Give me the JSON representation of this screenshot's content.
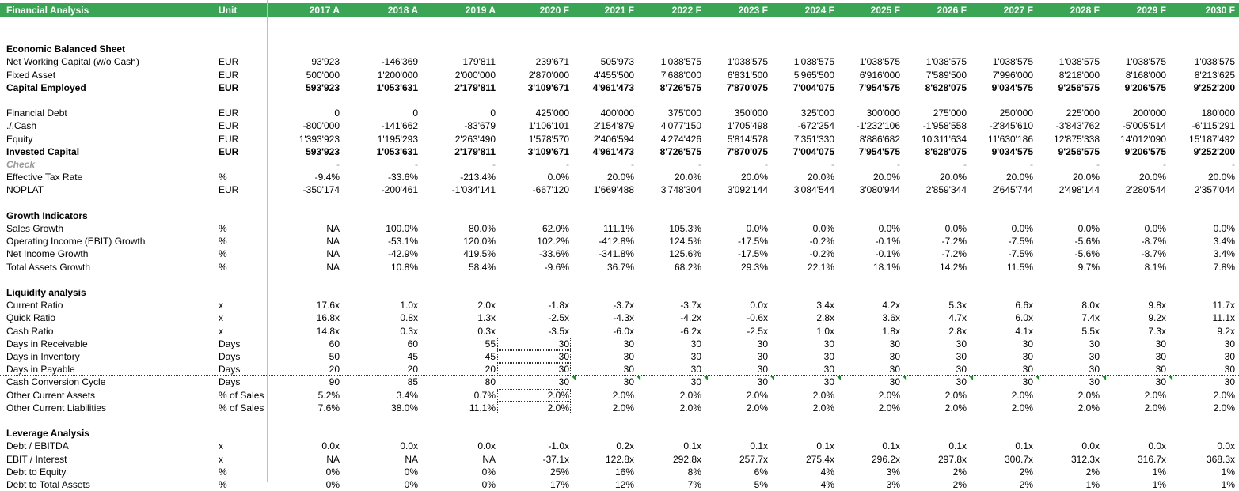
{
  "header": {
    "title": "Financial Analysis",
    "unit_label": "Unit",
    "years": [
      "2017 A",
      "2018 A",
      "2019 A",
      "2020 F",
      "2021 F",
      "2022 F",
      "2023 F",
      "2024 F",
      "2025 F",
      "2026 F",
      "2027 F",
      "2028 F",
      "2029 F",
      "2030 F"
    ]
  },
  "rows": [
    {
      "type": "blank"
    },
    {
      "type": "section",
      "label": "Economic Balanced Sheet"
    },
    {
      "type": "data",
      "label": "Net Working Capital (w/o Cash)",
      "unit": "EUR",
      "values": [
        "93'923",
        "-146'369",
        "179'811",
        "239'671",
        "505'973",
        "1'038'575",
        "1'038'575",
        "1'038'575",
        "1'038'575",
        "1'038'575",
        "1'038'575",
        "1'038'575",
        "1'038'575",
        "1'038'575"
      ]
    },
    {
      "type": "data",
      "label": "Fixed Asset",
      "unit": "EUR",
      "values": [
        "500'000",
        "1'200'000",
        "2'000'000",
        "2'870'000",
        "4'455'500",
        "7'688'000",
        "6'831'500",
        "5'965'500",
        "6'916'000",
        "7'589'500",
        "7'996'000",
        "8'218'000",
        "8'168'000",
        "8'213'625"
      ]
    },
    {
      "type": "bold",
      "label": "Capital Employed",
      "unit": "EUR",
      "values": [
        "593'923",
        "1'053'631",
        "2'179'811",
        "3'109'671",
        "4'961'473",
        "8'726'575",
        "7'870'075",
        "7'004'075",
        "7'954'575",
        "8'628'075",
        "9'034'575",
        "9'256'575",
        "9'206'575",
        "9'252'200"
      ]
    },
    {
      "type": "blank"
    },
    {
      "type": "data",
      "label": "Financial Debt",
      "unit": "EUR",
      "values": [
        "0",
        "0",
        "0",
        "425'000",
        "400'000",
        "375'000",
        "350'000",
        "325'000",
        "300'000",
        "275'000",
        "250'000",
        "225'000",
        "200'000",
        "180'000"
      ]
    },
    {
      "type": "data",
      "label": "./.Cash",
      "unit": "EUR",
      "values": [
        "-800'000",
        "-141'662",
        "-83'679",
        "1'106'101",
        "2'154'879",
        "4'077'150",
        "1'705'498",
        "-672'254",
        "-1'232'106",
        "-1'958'558",
        "-2'845'610",
        "-3'843'762",
        "-5'005'514",
        "-6'115'291"
      ]
    },
    {
      "type": "data",
      "label": "Equity",
      "unit": "EUR",
      "values": [
        "1'393'923",
        "1'195'293",
        "2'263'490",
        "1'578'570",
        "2'406'594",
        "4'274'426",
        "5'814'578",
        "7'351'330",
        "8'886'682",
        "10'311'634",
        "11'630'186",
        "12'875'338",
        "14'012'090",
        "15'187'492"
      ]
    },
    {
      "type": "bold",
      "label": "Invested Capital",
      "unit": "EUR",
      "values": [
        "593'923",
        "1'053'631",
        "2'179'811",
        "3'109'671",
        "4'961'473",
        "8'726'575",
        "7'870'075",
        "7'004'075",
        "7'954'575",
        "8'628'075",
        "9'034'575",
        "9'256'575",
        "9'206'575",
        "9'252'200"
      ]
    },
    {
      "type": "check",
      "label": "Check",
      "unit": "",
      "values": [
        "-",
        "-",
        "-",
        "-",
        "-",
        "-",
        "-",
        "-",
        "-",
        "-",
        "-",
        "-",
        "-",
        "-"
      ]
    },
    {
      "type": "data",
      "label": "Effective Tax Rate",
      "unit": "%",
      "values": [
        "-9.4%",
        "-33.6%",
        "-213.4%",
        "0.0%",
        "20.0%",
        "20.0%",
        "20.0%",
        "20.0%",
        "20.0%",
        "20.0%",
        "20.0%",
        "20.0%",
        "20.0%",
        "20.0%"
      ]
    },
    {
      "type": "data",
      "label": "NOPLAT",
      "unit": "EUR",
      "values": [
        "-350'174",
        "-200'461",
        "-1'034'141",
        "-667'120",
        "1'669'488",
        "3'748'304",
        "3'092'144",
        "3'084'544",
        "3'080'944",
        "2'859'344",
        "2'645'744",
        "2'498'144",
        "2'280'544",
        "2'357'044"
      ]
    },
    {
      "type": "blank"
    },
    {
      "type": "section",
      "label": "Growth Indicators"
    },
    {
      "type": "data",
      "label": "Sales Growth",
      "unit": "%",
      "values": [
        "NA",
        "100.0%",
        "80.0%",
        "62.0%",
        "111.1%",
        "105.3%",
        "0.0%",
        "0.0%",
        "0.0%",
        "0.0%",
        "0.0%",
        "0.0%",
        "0.0%",
        "0.0%"
      ]
    },
    {
      "type": "data",
      "label": "Operating Income (EBIT) Growth",
      "unit": "%",
      "values": [
        "NA",
        "-53.1%",
        "120.0%",
        "102.2%",
        "-412.8%",
        "124.5%",
        "-17.5%",
        "-0.2%",
        "-0.1%",
        "-7.2%",
        "-7.5%",
        "-5.6%",
        "-8.7%",
        "3.4%"
      ]
    },
    {
      "type": "data",
      "label": "Net Income Growth",
      "unit": "%",
      "values": [
        "NA",
        "-42.9%",
        "419.5%",
        "-33.6%",
        "-341.8%",
        "125.6%",
        "-17.5%",
        "-0.2%",
        "-0.1%",
        "-7.2%",
        "-7.5%",
        "-5.6%",
        "-8.7%",
        "3.4%"
      ]
    },
    {
      "type": "data",
      "label": "Total Assets Growth",
      "unit": "%",
      "values": [
        "NA",
        "10.8%",
        "58.4%",
        "-9.6%",
        "36.7%",
        "68.2%",
        "29.3%",
        "22.1%",
        "18.1%",
        "14.2%",
        "11.5%",
        "9.7%",
        "8.1%",
        "7.8%"
      ]
    },
    {
      "type": "blank"
    },
    {
      "type": "section",
      "label": "Liquidity analysis"
    },
    {
      "type": "data",
      "label": "Current Ratio",
      "unit": "x",
      "values": [
        "17.6x",
        "1.0x",
        "2.0x",
        "-1.8x",
        "-3.7x",
        "-3.7x",
        "0.0x",
        "3.4x",
        "4.2x",
        "5.3x",
        "6.6x",
        "8.0x",
        "9.8x",
        "11.7x"
      ]
    },
    {
      "type": "data",
      "label": "Quick Ratio",
      "unit": "x",
      "values": [
        "16.8x",
        "0.8x",
        "1.3x",
        "-2.5x",
        "-4.3x",
        "-4.2x",
        "-0.6x",
        "2.8x",
        "3.6x",
        "4.7x",
        "6.0x",
        "7.4x",
        "9.2x",
        "11.1x"
      ]
    },
    {
      "type": "data",
      "label": "Cash Ratio",
      "unit": "x",
      "values": [
        "14.8x",
        "0.3x",
        "0.3x",
        "-3.5x",
        "-6.0x",
        "-6.2x",
        "-2.5x",
        "1.0x",
        "1.8x",
        "2.8x",
        "4.1x",
        "5.5x",
        "7.3x",
        "9.2x"
      ]
    },
    {
      "type": "data",
      "label": "Days in Receivable",
      "unit": "Days",
      "box": true,
      "values": [
        "60",
        "60",
        "55",
        "30",
        "30",
        "30",
        "30",
        "30",
        "30",
        "30",
        "30",
        "30",
        "30",
        "30"
      ]
    },
    {
      "type": "data",
      "label": "Days in Inventory",
      "unit": "Days",
      "box": true,
      "values": [
        "50",
        "45",
        "45",
        "30",
        "30",
        "30",
        "30",
        "30",
        "30",
        "30",
        "30",
        "30",
        "30",
        "30"
      ]
    },
    {
      "type": "data",
      "label": "Days in Payable",
      "unit": "Days",
      "box": true,
      "values": [
        "20",
        "20",
        "20",
        "30",
        "30",
        "30",
        "30",
        "30",
        "30",
        "30",
        "30",
        "30",
        "30",
        "30"
      ]
    },
    {
      "type": "data",
      "label": "Cash Conversion Cycle",
      "unit": "Days",
      "marks": true,
      "values": [
        "90",
        "85",
        "80",
        "30",
        "30",
        "30",
        "30",
        "30",
        "30",
        "30",
        "30",
        "30",
        "30",
        "30"
      ]
    },
    {
      "type": "data",
      "label": "Other Current Assets",
      "unit": "% of Sales",
      "box": true,
      "values": [
        "5.2%",
        "3.4%",
        "0.7%",
        "2.0%",
        "2.0%",
        "2.0%",
        "2.0%",
        "2.0%",
        "2.0%",
        "2.0%",
        "2.0%",
        "2.0%",
        "2.0%",
        "2.0%"
      ]
    },
    {
      "type": "data",
      "label": "Other Current Liabilities",
      "unit": "% of Sales",
      "box": true,
      "values": [
        "7.6%",
        "38.0%",
        "11.1%",
        "2.0%",
        "2.0%",
        "2.0%",
        "2.0%",
        "2.0%",
        "2.0%",
        "2.0%",
        "2.0%",
        "2.0%",
        "2.0%",
        "2.0%"
      ]
    },
    {
      "type": "blank"
    },
    {
      "type": "section",
      "label": "Leverage Analysis"
    },
    {
      "type": "data",
      "label": "Debt / EBITDA",
      "unit": "x",
      "values": [
        "0.0x",
        "0.0x",
        "0.0x",
        "-1.0x",
        "0.2x",
        "0.1x",
        "0.1x",
        "0.1x",
        "0.1x",
        "0.1x",
        "0.1x",
        "0.0x",
        "0.0x",
        "0.0x"
      ]
    },
    {
      "type": "data",
      "label": "EBIT / Interest",
      "unit": "x",
      "values": [
        "NA",
        "NA",
        "NA",
        "-37.1x",
        "122.8x",
        "292.8x",
        "257.7x",
        "275.4x",
        "296.2x",
        "297.8x",
        "300.7x",
        "312.3x",
        "316.7x",
        "368.3x"
      ]
    },
    {
      "type": "data",
      "label": "Debt to Equity",
      "unit": "%",
      "values": [
        "0%",
        "0%",
        "0%",
        "25%",
        "16%",
        "8%",
        "6%",
        "4%",
        "3%",
        "2%",
        "2%",
        "2%",
        "1%",
        "1%"
      ]
    },
    {
      "type": "data",
      "label": "Debt to Total Assets",
      "unit": "%",
      "values": [
        "0%",
        "0%",
        "0%",
        "17%",
        "12%",
        "7%",
        "5%",
        "4%",
        "3%",
        "2%",
        "2%",
        "1%",
        "1%",
        "1%"
      ]
    }
  ],
  "colors": {
    "header_bg": "#3aa655",
    "header_text": "#ffffff",
    "check_text": "#9a9a9a",
    "comment_marker": "#1f8a2e"
  }
}
